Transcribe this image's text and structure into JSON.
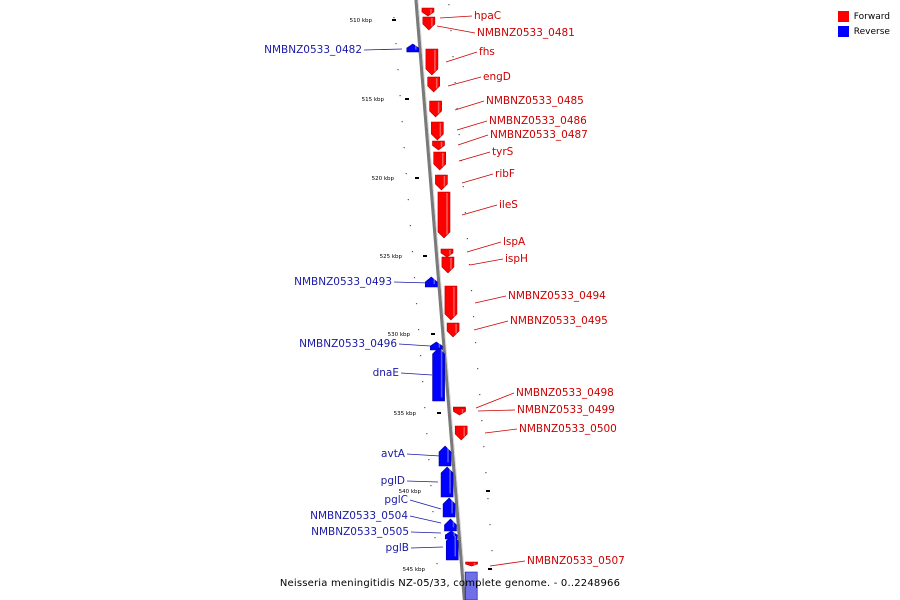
{
  "colors": {
    "forward": "#ff0000",
    "reverse": "#0000ff",
    "forward_text": "#cc0000",
    "reverse_text": "#1a1aa6",
    "backbone": "#8c8c8c"
  },
  "legend": [
    {
      "label": "Forward",
      "color": "#ff0000"
    },
    {
      "label": "Reverse",
      "color": "#0000ff"
    }
  ],
  "caption": "Neisseria meningitidis NZ-05/33, complete genome. - 0..2248966",
  "kbp_labels": [
    "510 kbp",
    "515 kbp",
    "520 kbp",
    "525 kbp",
    "530 kbp",
    "535 kbp",
    "540 kbp",
    "545 kbp"
  ],
  "genes": [
    {
      "name": "hpaC",
      "strand": "forward"
    },
    {
      "name": "NMBNZ0533_0481",
      "strand": "forward"
    },
    {
      "name": "NMBNZ0533_0482",
      "strand": "reverse"
    },
    {
      "name": "fhs",
      "strand": "forward"
    },
    {
      "name": "engD",
      "strand": "forward"
    },
    {
      "name": "NMBNZ0533_0485",
      "strand": "forward"
    },
    {
      "name": "NMBNZ0533_0486",
      "strand": "forward"
    },
    {
      "name": "NMBNZ0533_0487",
      "strand": "forward"
    },
    {
      "name": "tyrS",
      "strand": "forward"
    },
    {
      "name": "ribF",
      "strand": "forward"
    },
    {
      "name": "ileS",
      "strand": "forward"
    },
    {
      "name": "lspA",
      "strand": "forward"
    },
    {
      "name": "ispH",
      "strand": "forward"
    },
    {
      "name": "NMBNZ0533_0493",
      "strand": "reverse"
    },
    {
      "name": "NMBNZ0533_0494",
      "strand": "forward"
    },
    {
      "name": "NMBNZ0533_0495",
      "strand": "forward"
    },
    {
      "name": "NMBNZ0533_0496",
      "strand": "reverse"
    },
    {
      "name": "dnaE",
      "strand": "reverse"
    },
    {
      "name": "NMBNZ0533_0498",
      "strand": "forward"
    },
    {
      "name": "NMBNZ0533_0499",
      "strand": "forward"
    },
    {
      "name": "NMBNZ0533_0500",
      "strand": "forward"
    },
    {
      "name": "avtA",
      "strand": "reverse"
    },
    {
      "name": "pglD",
      "strand": "reverse"
    },
    {
      "name": "pglC",
      "strand": "reverse"
    },
    {
      "name": "NMBNZ0533_0504",
      "strand": "reverse"
    },
    {
      "name": "NMBNZ0533_0505",
      "strand": "reverse"
    },
    {
      "name": "pglB",
      "strand": "reverse"
    },
    {
      "name": "NMBNZ0533_0507",
      "strand": "forward"
    }
  ]
}
